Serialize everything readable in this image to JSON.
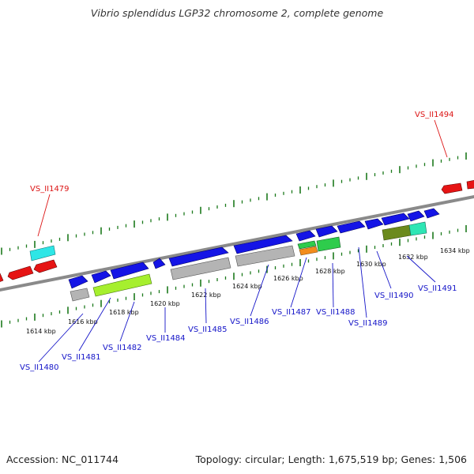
{
  "title": "Vibrio splendidus LGP32 chromosome 2, complete genome",
  "footer": {
    "accession": "Accession: NC_011744",
    "summary": "Topology: circular; Length: 1,675,519 bp; Genes: 1,506"
  },
  "colors": {
    "backbone": "#8a8a8a",
    "tick": "#1c7a1c",
    "label_blue": "#1414c8",
    "label_red": "#dc1414",
    "cds_forward": "#1414e6",
    "cds_reverse": "#e61414",
    "cog_gray": "#b4b4b4",
    "cog_lime": "#a6ef2e",
    "cog_cyan": "#2ee6e6",
    "cog_green": "#2ecc4c",
    "cog_orange": "#f28c1c",
    "cog_olive": "#6b8a1c",
    "cog_teal": "#2ee6b4"
  },
  "tick_labels": [
    "1614 kbp",
    "1616 kbp",
    "1618 kbp",
    "1620 kbp",
    "1622 kbp",
    "1624 kbp",
    "1626 kbp",
    "1628 kbp",
    "1630 kbp",
    "1632 kbp",
    "1634 kbp"
  ],
  "gene_labels": [
    {
      "name": "VS_II1480",
      "strand": "forward"
    },
    {
      "name": "VS_II1481",
      "strand": "forward"
    },
    {
      "name": "VS_II1482",
      "strand": "forward"
    },
    {
      "name": "VS_II1484",
      "strand": "forward"
    },
    {
      "name": "VS_II1485",
      "strand": "forward"
    },
    {
      "name": "VS_II1486",
      "strand": "forward"
    },
    {
      "name": "VS_II1487",
      "strand": "forward"
    },
    {
      "name": "VS_II1488",
      "strand": "forward"
    },
    {
      "name": "VS_II1489",
      "strand": "forward"
    },
    {
      "name": "VS_II1490",
      "strand": "forward"
    },
    {
      "name": "VS_II1491",
      "strand": "forward"
    },
    {
      "name": "VS_II1479",
      "strand": "reverse"
    },
    {
      "name": "VS_II1494",
      "strand": "reverse"
    }
  ]
}
